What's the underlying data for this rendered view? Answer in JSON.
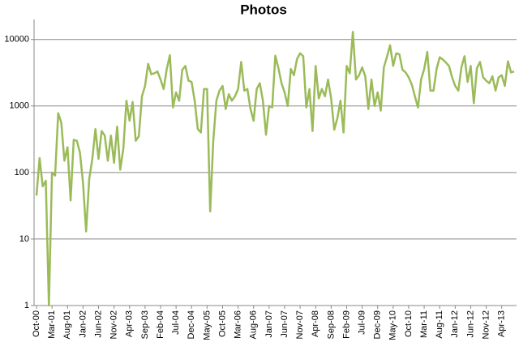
{
  "chart_data": {
    "type": "line",
    "title": "Photos",
    "categories": [
      "Oct-00",
      null,
      null,
      null,
      null,
      "Mar-01",
      null,
      null,
      null,
      null,
      "Aug-01",
      null,
      null,
      null,
      null,
      "Jan-02",
      null,
      null,
      null,
      null,
      "Jun-02",
      null,
      null,
      null,
      null,
      "Nov-02",
      null,
      null,
      null,
      null,
      "Apr-03",
      null,
      null,
      null,
      null,
      "Sep-03",
      null,
      null,
      null,
      null,
      "Feb-04",
      null,
      null,
      null,
      null,
      "Jul-04",
      null,
      null,
      null,
      null,
      "Dec-04",
      null,
      null,
      null,
      null,
      "May-05",
      null,
      null,
      null,
      null,
      "Oct-05",
      null,
      null,
      null,
      null,
      "Mar-06",
      null,
      null,
      null,
      null,
      "Aug-06",
      null,
      null,
      null,
      null,
      "Jan-07",
      null,
      null,
      null,
      null,
      "Jun-07",
      null,
      null,
      null,
      null,
      "Nov-07",
      null,
      null,
      null,
      null,
      "Apr-08",
      null,
      null,
      null,
      null,
      "Sep-08",
      null,
      null,
      null,
      null,
      "Feb-09",
      null,
      null,
      null,
      null,
      "Jul-09",
      null,
      null,
      null,
      null,
      "Dec-09",
      null,
      null,
      null,
      null,
      "May-10",
      null,
      null,
      null,
      null,
      "Oct-10",
      null,
      null,
      null,
      null,
      "Mar-11",
      null,
      null,
      null,
      null,
      "Aug-11",
      null,
      null,
      null,
      null,
      "Jan-12",
      null,
      null,
      null,
      null,
      "Jun-12",
      null,
      null,
      null,
      null,
      "Nov-12",
      null,
      null,
      null,
      null,
      "Apr-13",
      null,
      null,
      null,
      null
    ],
    "series": [
      {
        "name": "Photos",
        "color": "#9bbb59",
        "values": [
          45,
          165,
          62,
          75,
          1,
          100,
          90,
          780,
          560,
          150,
          240,
          38,
          310,
          300,
          200,
          70,
          13,
          80,
          160,
          450,
          160,
          420,
          360,
          150,
          360,
          140,
          490,
          110,
          230,
          1200,
          600,
          1150,
          300,
          350,
          1400,
          2000,
          4300,
          3000,
          3100,
          3300,
          2500,
          1800,
          3600,
          5800,
          950,
          1600,
          1200,
          3500,
          4000,
          2400,
          2300,
          1200,
          450,
          400,
          1800,
          1800,
          26,
          300,
          1200,
          1700,
          2000,
          900,
          1500,
          1200,
          1400,
          1800,
          4600,
          1700,
          1800,
          900,
          600,
          1800,
          2200,
          1200,
          370,
          1000,
          950,
          5700,
          3700,
          2200,
          1600,
          1000,
          3600,
          2900,
          5100,
          6200,
          5600,
          950,
          1800,
          420,
          4000,
          1300,
          1800,
          1400,
          2500,
          1300,
          440,
          650,
          1200,
          400,
          4000,
          3100,
          13000,
          2500,
          2900,
          3800,
          2800,
          900,
          2500,
          1000,
          1600,
          850,
          3800,
          5500,
          8200,
          4000,
          6200,
          6000,
          3500,
          3200,
          2700,
          2100,
          1400,
          950,
          2500,
          3600,
          6500,
          1700,
          1700,
          3600,
          5400,
          5000,
          4500,
          4000,
          2700,
          2000,
          1700,
          3800,
          5600,
          2300,
          4000,
          1100,
          3700,
          4600,
          2700,
          2400,
          2200,
          2800,
          1700,
          2700,
          2900,
          2000,
          4700,
          3200,
          3300
        ]
      }
    ],
    "ylim": [
      1,
      20000
    ],
    "yticks": [
      1,
      10,
      100,
      1000,
      10000
    ],
    "log_y": true,
    "grid": true
  }
}
